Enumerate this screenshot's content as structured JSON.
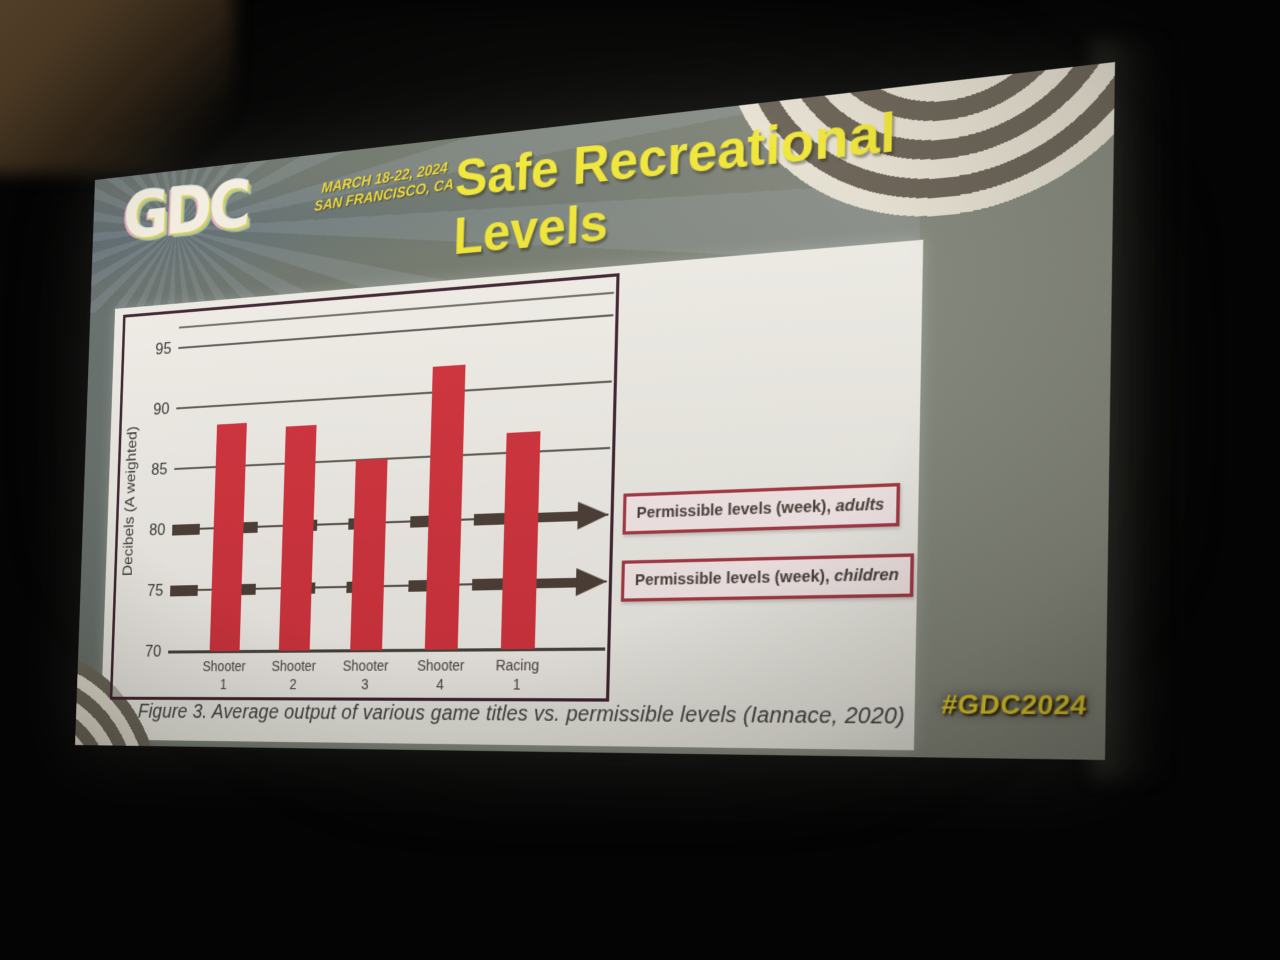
{
  "scene": {
    "hashtag": "#GDC2024"
  },
  "banner": {
    "logo": "GDC",
    "date_line1": "MARCH 18-22, 2024",
    "date_line2": "SAN FRANCISCO, CA",
    "title_line1": "Safe Recreational",
    "title_line2": "Levels"
  },
  "caption": "Figure 3. Average output of various game titles vs. permissible levels (Iannace, 2020)",
  "chart_data": {
    "type": "bar",
    "title": "",
    "xlabel": "",
    "ylabel": "Decibels (A weighted)",
    "categories": [
      [
        "Shooter",
        "1"
      ],
      [
        "Shooter",
        "2"
      ],
      [
        "Shooter",
        "3"
      ],
      [
        "Shooter",
        "4"
      ],
      [
        "Racing",
        "1"
      ]
    ],
    "values": [
      88.5,
      88,
      85,
      92,
      86.5
    ],
    "yticks": [
      95,
      90,
      85,
      80,
      75,
      70
    ],
    "ylim": [
      70,
      96.8
    ],
    "grid": true,
    "legend": "none",
    "bar_color": "#d5343e",
    "reference_lines": [
      {
        "value": 80,
        "label_prefix": "Permissible levels (week), ",
        "label_em": "adults"
      },
      {
        "value": 75,
        "label_prefix": "Permissible levels (week), ",
        "label_em": "children"
      }
    ]
  }
}
